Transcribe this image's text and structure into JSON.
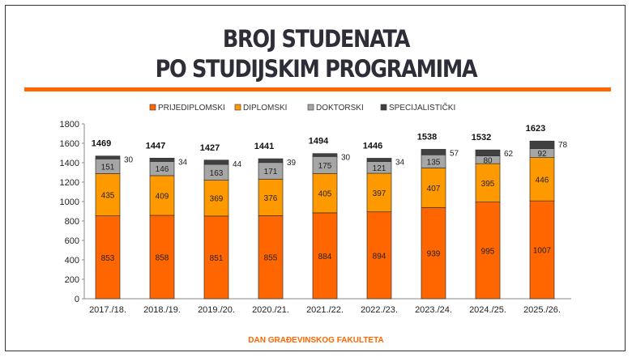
{
  "chart_data": {
    "type": "bar",
    "stacked": true,
    "title": "BROJ STUDENATA PO STUDIJSKIM PROGRAMIMA",
    "title_lines": [
      "BROJ STUDENATA",
      "PO STUDIJSKIM PROGRAMIMA"
    ],
    "categories": [
      "2017./18.",
      "2018./19.",
      "2019./20.",
      "2020./21.",
      "2021./22.",
      "2022./23.",
      "2023./24.",
      "2024./25.",
      "2025./26."
    ],
    "series": [
      {
        "name": "PRIJEDIPLOMSKI",
        "color": "#ff6600",
        "values": [
          853,
          858,
          851,
          855,
          884,
          894,
          939,
          995,
          1007
        ]
      },
      {
        "name": "DIPLOMSKI",
        "color": "#ff9900",
        "values": [
          435,
          409,
          369,
          376,
          405,
          397,
          407,
          395,
          446
        ]
      },
      {
        "name": "DOKTORSKI",
        "color": "#a6a6a6",
        "values": [
          151,
          146,
          163,
          171,
          175,
          121,
          135,
          80,
          92
        ]
      },
      {
        "name": "SPECIJALISTIČKI",
        "color": "#404040",
        "values": [
          30,
          34,
          44,
          39,
          30,
          34,
          57,
          62,
          78
        ]
      }
    ],
    "totals": [
      1469,
      1447,
      1427,
      1441,
      1494,
      1446,
      1538,
      1532,
      1623
    ],
    "ylim": [
      0,
      1800
    ],
    "yticks": [
      0,
      200,
      400,
      600,
      800,
      1000,
      1200,
      1400,
      1600,
      1800
    ],
    "legend_position": "top",
    "grid": false
  },
  "footer": "DAN GRAĐEVINSKOG FAKULTETA"
}
